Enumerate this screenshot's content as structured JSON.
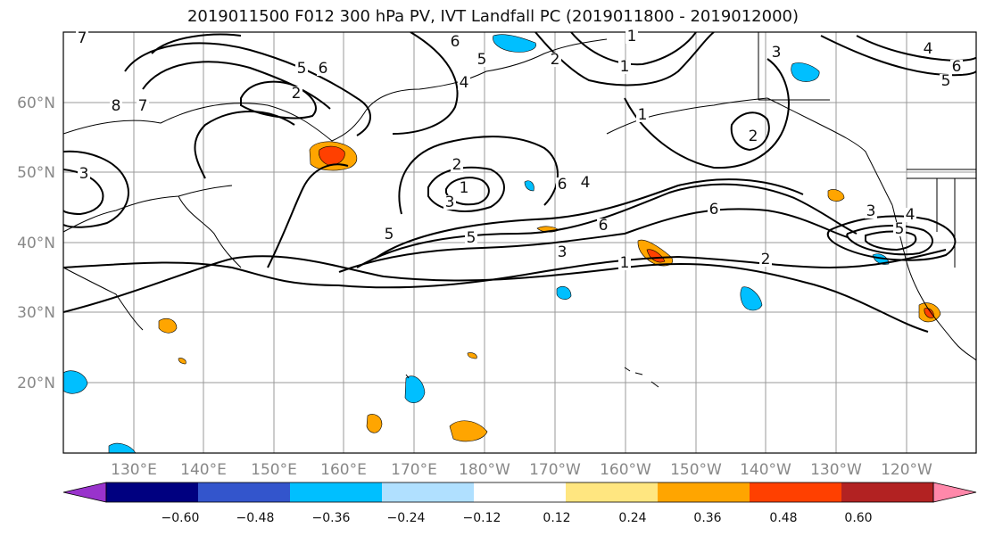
{
  "title": "2019011500 F012 300 hPa PV, IVT Landfall PC (2019011800 - 2019012000)",
  "lat_labels": [
    "60°N",
    "50°N",
    "40°N",
    "30°N",
    "20°N"
  ],
  "lon_labels": [
    "130°E",
    "140°E",
    "150°E",
    "160°E",
    "170°E",
    "180°W",
    "170°W",
    "160°W",
    "150°W",
    "140°W",
    "130°W",
    "120°W"
  ],
  "colorbar": {
    "colors": [
      "#9933cc",
      "#000080",
      "#3355cc",
      "#00bfff",
      "#b0e0ff",
      "#ffffff",
      "#ffe680",
      "#ffa500",
      "#ff4000",
      "#b22222",
      "#ff88aa"
    ],
    "labels": [
      "−0.60",
      "−0.48",
      "−0.36",
      "−0.24",
      "−0.12",
      "0.12",
      "0.24",
      "0.36",
      "0.48",
      "0.60"
    ]
  },
  "contour_labels": [
    "7",
    "6",
    "5",
    "8",
    "7",
    "2",
    "6",
    "5",
    "1",
    "4",
    "3",
    "2",
    "1",
    "6",
    "5",
    "2",
    "1",
    "3",
    "5",
    "4",
    "6",
    "6",
    "2",
    "1",
    "4",
    "3",
    "5",
    "3",
    "2",
    "1",
    "6",
    "5",
    "4",
    "3"
  ]
}
